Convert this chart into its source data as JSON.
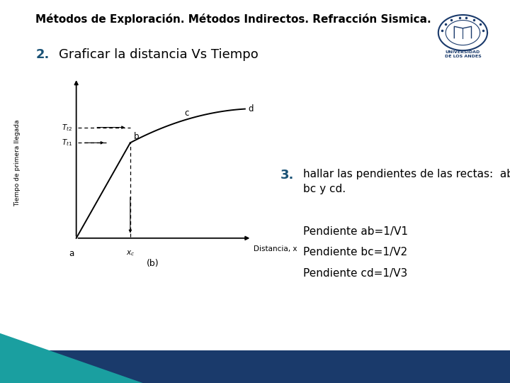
{
  "title": "Métodos de Exploración. Métodos Indirectos. Refracción Sismica.",
  "title_fontsize": 11,
  "title_bold": true,
  "title_color": "#000000",
  "subtitle2": "2.",
  "subtitle2_color": "#1a5276",
  "subtitle2_text": "Graficar la distancia Vs Tiempo",
  "subtitle2_fontsize": 13,
  "ylabel": "Tiempo de primera llegada",
  "xlabel": "Distancia, x",
  "sublabel": "(b)",
  "bg_color": "#ffffff",
  "footer_color": "#1a3a6b",
  "teal_color": "#1a9fa0",
  "point3_color": "#1a5276",
  "step3_label": "3.",
  "step3_text": "hallar las pendientes de las rectas:  ab,\nbc y cd.",
  "pendiente_lines": [
    "Pendiente ab=1/V1",
    "Pendiente bc=1/V2",
    "Pendiente cd=1/V3"
  ],
  "text_fontsize": 11,
  "pendiente_fontsize": 11,
  "logo_color": "#1a3a6b",
  "logo_text1": "UNIVERSIDAD",
  "logo_text2": "DE LOS ANDES"
}
